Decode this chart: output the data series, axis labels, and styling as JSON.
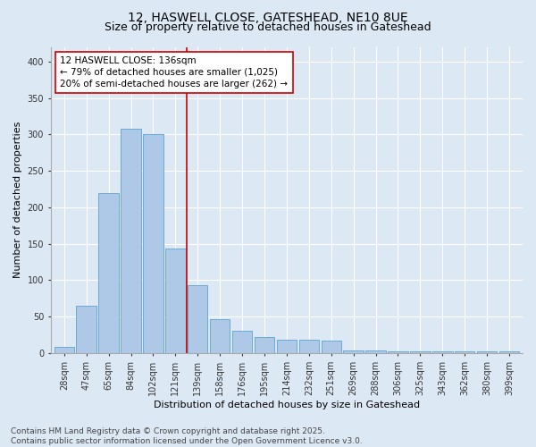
{
  "title_line1": "12, HASWELL CLOSE, GATESHEAD, NE10 8UE",
  "title_line2": "Size of property relative to detached houses in Gateshead",
  "xlabel": "Distribution of detached houses by size in Gateshead",
  "ylabel": "Number of detached properties",
  "categories": [
    "28sqm",
    "47sqm",
    "65sqm",
    "84sqm",
    "102sqm",
    "121sqm",
    "139sqm",
    "158sqm",
    "176sqm",
    "195sqm",
    "214sqm",
    "232sqm",
    "251sqm",
    "269sqm",
    "288sqm",
    "306sqm",
    "325sqm",
    "343sqm",
    "362sqm",
    "380sqm",
    "399sqm"
  ],
  "values": [
    8,
    65,
    220,
    308,
    300,
    143,
    93,
    47,
    30,
    22,
    18,
    18,
    17,
    4,
    4,
    2,
    2,
    2,
    2,
    2,
    2
  ],
  "bar_color": "#aec8e8",
  "bar_edge_color": "#6aaad4",
  "vline_x_idx": 5.5,
  "vline_color": "#cc0000",
  "annotation_text": "12 HASWELL CLOSE: 136sqm\n← 79% of detached houses are smaller (1,025)\n20% of semi-detached houses are larger (262) →",
  "box_color": "#ffffff",
  "box_edge_color": "#cc0000",
  "background_color": "#dde8f5",
  "grid_color": "#ffffff",
  "ylim": [
    0,
    420
  ],
  "yticks": [
    0,
    50,
    100,
    150,
    200,
    250,
    300,
    350,
    400
  ],
  "footer_text": "Contains HM Land Registry data © Crown copyright and database right 2025.\nContains public sector information licensed under the Open Government Licence v3.0.",
  "title_fontsize": 10,
  "subtitle_fontsize": 9,
  "axis_label_fontsize": 8,
  "tick_fontsize": 7,
  "annotation_fontsize": 7.5,
  "footer_fontsize": 6.5
}
